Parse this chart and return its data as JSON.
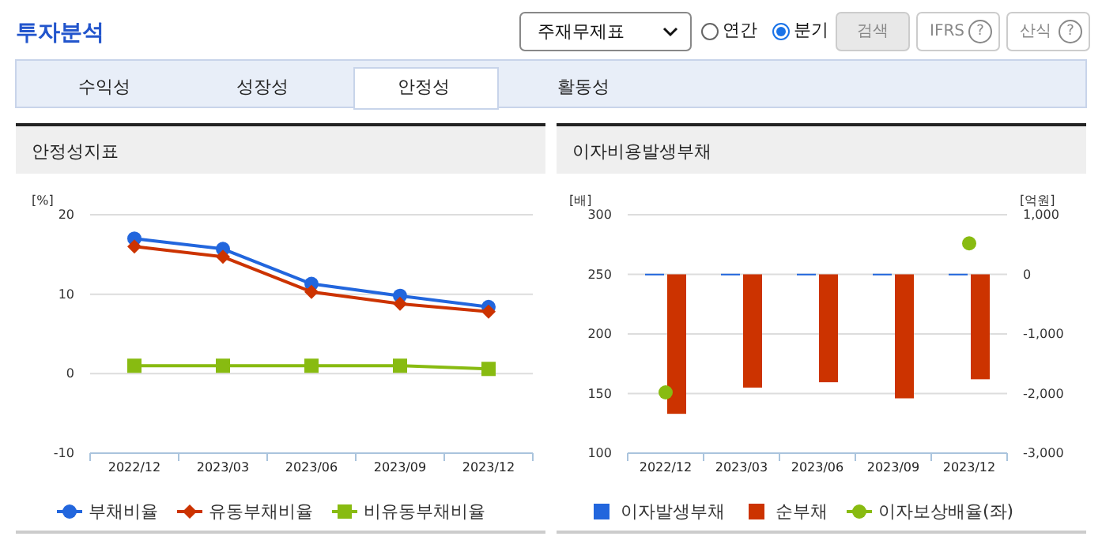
{
  "chart_data": [
    {
      "type": "other",
      "title": "투자분석",
      "annotations": [
        "주재무제표",
        "연간",
        "분기",
        "검색",
        "IFRS",
        "산식",
        "수익성",
        "성장성",
        "안정성",
        "활동성",
        "?",
        "?"
      ]
    },
    {
      "type": "line",
      "title": "안정성지표",
      "ylabel": "[%]",
      "categories": [
        "2022/12",
        "2023/03",
        "2023/06",
        "2023/09",
        "2023/12"
      ],
      "ylim": [
        -10,
        20
      ],
      "yticks": [
        -10,
        0,
        10,
        20
      ],
      "grid": "y",
      "legend": "bottom",
      "series": [
        {
          "name": "부채비율",
          "color": "#2266dd",
          "marker": "circle",
          "values": [
            17.0,
            15.7,
            11.3,
            9.8,
            8.4
          ]
        },
        {
          "name": "유동부채비율",
          "color": "#cc3300",
          "marker": "diamond",
          "values": [
            16.0,
            14.7,
            10.3,
            8.8,
            7.8
          ]
        },
        {
          "name": "비유동부채비율",
          "color": "#88bb11",
          "marker": "square",
          "values": [
            1.0,
            1.0,
            1.0,
            1.0,
            0.6
          ]
        }
      ]
    },
    {
      "type": "bar",
      "title": "이자비용발생부채",
      "ylabel": "[배]",
      "y2label": "[억원]",
      "categories": [
        "2022/12",
        "2023/03",
        "2023/06",
        "2023/09",
        "2023/12"
      ],
      "ylim": [
        100,
        300
      ],
      "yticks": [
        100,
        150,
        200,
        250,
        300
      ],
      "y2lim": [
        -3000,
        1000
      ],
      "y2ticks": [
        {
          "value": -3000,
          "label": "-3,000"
        },
        {
          "value": -2000,
          "label": "-2,000"
        },
        {
          "value": -1000,
          "label": "-1,000"
        },
        {
          "value": 0,
          "label": "0"
        },
        {
          "value": 1000,
          "label": "1,000"
        }
      ],
      "grid": "y",
      "legend": "bottom",
      "series": [
        {
          "name": "이자발생부채",
          "color": "#2266dd",
          "axis": "y2",
          "values": [
            10,
            10,
            10,
            10,
            10
          ]
        },
        {
          "name": "순부채",
          "color": "#cc3300",
          "axis": "y2",
          "values": [
            -2340,
            -1900,
            -1810,
            -2080,
            -1760
          ]
        },
        {
          "name": "이자보상배율(좌)",
          "type": "scatter",
          "marker": "circle",
          "color": "#88bb11",
          "values": [
            151,
            null,
            null,
            null,
            276
          ]
        }
      ]
    }
  ]
}
